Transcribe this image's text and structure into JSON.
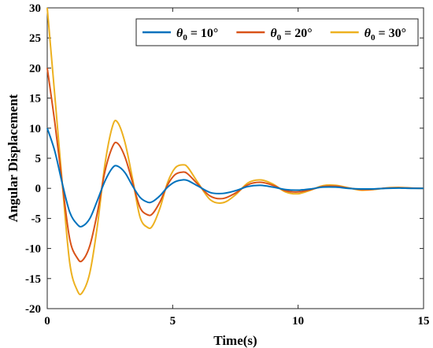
{
  "chart_data": {
    "type": "line",
    "title": "",
    "xlabel": "Time(s)",
    "ylabel": "Angular Displacement",
    "xlim": [
      0,
      15
    ],
    "ylim": [
      -20,
      30
    ],
    "xticks": [
      0,
      5,
      10,
      15
    ],
    "yticks": [
      -20,
      -15,
      -10,
      -5,
      0,
      5,
      10,
      15,
      20,
      25,
      30
    ],
    "grid": false,
    "legend_position": "top-right",
    "x": [
      0,
      0.3,
      0.6,
      0.9,
      1.2,
      1.4,
      1.7,
      2.0,
      2.3,
      2.6,
      2.8,
      3.1,
      3.4,
      3.7,
      4.0,
      4.2,
      4.5,
      4.8,
      5.1,
      5.4,
      5.6,
      6.0,
      6.5,
      7.0,
      7.5,
      8.0,
      8.5,
      9.0,
      9.5,
      10.0,
      10.5,
      11.0,
      11.5,
      12.0,
      12.5,
      13.0,
      13.5,
      14.0,
      14.5,
      15.0
    ],
    "series": [
      {
        "name": "θ0 = 10°",
        "values": [
          10,
          6.2,
          0.8,
          -4.0,
          -6.0,
          -6.3,
          -5.0,
          -2.0,
          1.2,
          3.4,
          3.7,
          2.6,
          0.4,
          -1.5,
          -2.3,
          -2.2,
          -1.2,
          0.2,
          1.1,
          1.4,
          1.3,
          0.4,
          -0.7,
          -0.85,
          -0.4,
          0.3,
          0.5,
          0.2,
          -0.2,
          -0.3,
          -0.1,
          0.2,
          0.2,
          0,
          -0.1,
          -0.1,
          0,
          0.05,
          0,
          0
        ],
        "color": "#0072BD"
      },
      {
        "name": "θ0 = 20°",
        "values": [
          20,
          11,
          0.8,
          -8.5,
          -11.6,
          -12,
          -9.5,
          -4.0,
          2.8,
          6.9,
          7.5,
          5.2,
          1.0,
          -3.2,
          -4.4,
          -4.2,
          -2.2,
          0.6,
          2.3,
          2.7,
          2.4,
          0.7,
          -1.3,
          -1.7,
          -0.8,
          0.6,
          1.0,
          0.5,
          -0.4,
          -0.6,
          -0.2,
          0.3,
          0.35,
          0.05,
          -0.2,
          -0.15,
          0.05,
          0.1,
          0.05,
          0
        ],
        "color": "#D95319"
      },
      {
        "name": "θ0 = 30°",
        "values": [
          30,
          15.5,
          0.8,
          -12.5,
          -17,
          -17.3,
          -14,
          -6.2,
          4.0,
          10.3,
          11.0,
          7.6,
          1.6,
          -4.8,
          -6.5,
          -6.2,
          -3.2,
          1.0,
          3.4,
          3.9,
          3.5,
          1.0,
          -1.9,
          -2.4,
          -1.1,
          0.9,
          1.4,
          0.7,
          -0.6,
          -0.9,
          -0.3,
          0.45,
          0.5,
          0.1,
          -0.3,
          -0.2,
          0.05,
          0.15,
          0.05,
          0
        ],
        "color": "#EDB120"
      }
    ]
  }
}
